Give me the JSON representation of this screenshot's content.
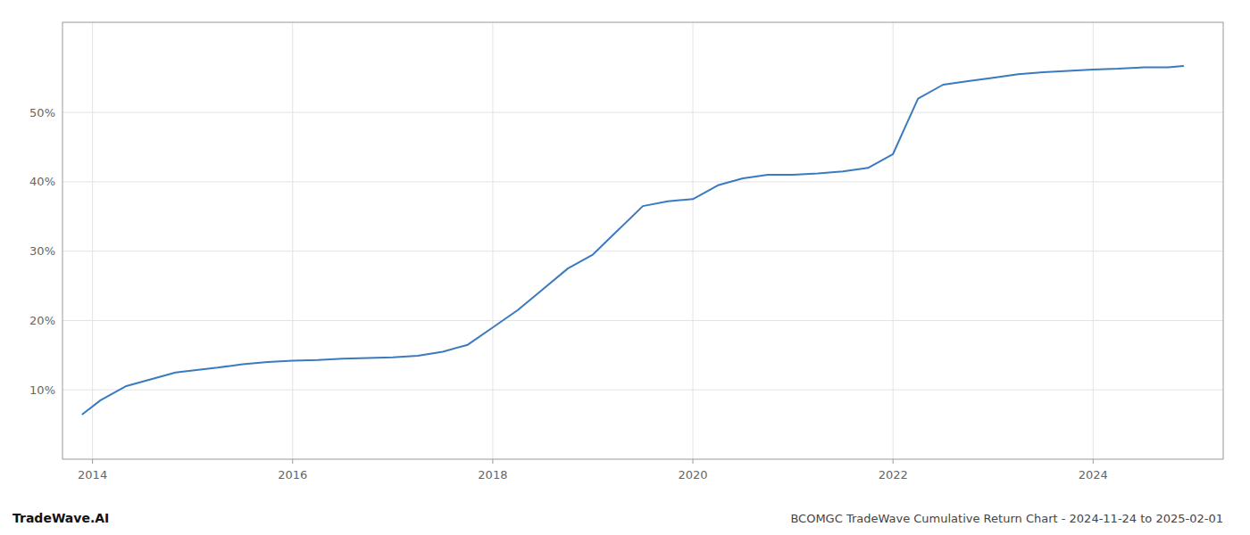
{
  "chart_data": {
    "type": "line",
    "title": "BCOMGC TradeWave Cumulative Return Chart - 2024-11-24 to 2025-02-01",
    "annotations": [
      "TradeWave.AI"
    ],
    "color": "#3a7abf",
    "grid": true,
    "x": [
      2013.9,
      2014.08,
      2014.33,
      2014.58,
      2014.83,
      2015.0,
      2015.25,
      2015.5,
      2015.75,
      2016.0,
      2016.25,
      2016.5,
      2016.75,
      2017.0,
      2017.25,
      2017.5,
      2017.75,
      2018.0,
      2018.25,
      2018.5,
      2018.75,
      2019.0,
      2019.25,
      2019.5,
      2019.75,
      2020.0,
      2020.25,
      2020.5,
      2020.75,
      2021.0,
      2021.25,
      2021.5,
      2021.75,
      2022.0,
      2022.25,
      2022.5,
      2022.75,
      2023.0,
      2023.25,
      2023.5,
      2023.75,
      2024.0,
      2024.25,
      2024.5,
      2024.75,
      2024.9
    ],
    "values": [
      6.5,
      8.5,
      10.5,
      11.5,
      12.5,
      12.8,
      13.2,
      13.7,
      14.0,
      14.2,
      14.3,
      14.5,
      14.6,
      14.7,
      14.9,
      15.5,
      16.5,
      19.0,
      21.5,
      24.5,
      27.5,
      29.5,
      33.0,
      36.5,
      37.2,
      37.5,
      39.5,
      40.5,
      41.0,
      41.0,
      41.2,
      41.5,
      42.0,
      44.0,
      52.0,
      54.0,
      54.5,
      55.0,
      55.5,
      55.8,
      56.0,
      56.2,
      56.3,
      56.5,
      56.5,
      56.7
    ],
    "xlim": [
      2013.7,
      2025.3
    ],
    "ylim": [
      0,
      63
    ],
    "xticks": [
      2014,
      2016,
      2018,
      2020,
      2022,
      2024
    ],
    "yticks": [
      {
        "value": 10,
        "label": "10%"
      },
      {
        "value": 20,
        "label": "20%"
      },
      {
        "value": 30,
        "label": "30%"
      },
      {
        "value": 40,
        "label": "40%"
      },
      {
        "value": 50,
        "label": "50%"
      }
    ]
  }
}
